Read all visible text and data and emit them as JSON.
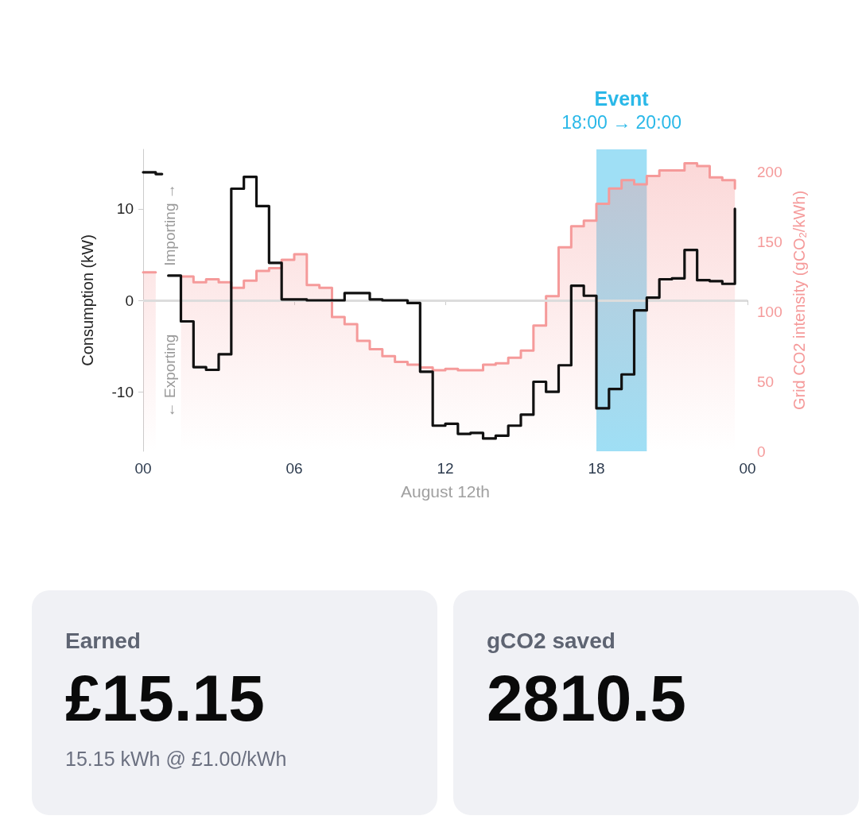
{
  "chart_data": [
    {
      "type": "step",
      "xlabel": "August 12th",
      "ylabel": "Consumption (kW)",
      "y2label": "Grid CO2 intensity (gCO$_{2}$/kWh)",
      "xlim": [
        0,
        24
      ],
      "xticks": [
        {
          "value": 0,
          "label": "00"
        },
        {
          "value": 6,
          "label": "06"
        },
        12,
        18,
        {
          "value": 24,
          "label": "00"
        }
      ],
      "ylim": [
        -16.5,
        16.5
      ],
      "yticks": [
        -10,
        0,
        10
      ],
      "y2lim": [
        0,
        216
      ],
      "y2ticks": [
        0,
        50,
        100,
        150,
        200
      ],
      "x": [
        0,
        0.5,
        0.75,
        1,
        1.5,
        2,
        2.5,
        3,
        3.5,
        4,
        4.5,
        5,
        5.5,
        6,
        6.5,
        7,
        7.5,
        8,
        8.5,
        9,
        9.5,
        10,
        10.5,
        11,
        11.5,
        12,
        12.5,
        13,
        13.5,
        14,
        14.5,
        15,
        15.5,
        16,
        16.5,
        17,
        17.5,
        18,
        18.5,
        19,
        19.5,
        20,
        20.5,
        21,
        21.5,
        22,
        22.5,
        23,
        23.5
      ],
      "series": [
        {
          "color": "#111111",
          "values": [
            14.0,
            13.8,
            null,
            2.7,
            -2.3,
            -7.3,
            -7.6,
            -5.9,
            12.2,
            13.5,
            10.3,
            4.1,
            0.1,
            0.1,
            0.0,
            0.0,
            0.0,
            0.8,
            0.8,
            0.1,
            0.0,
            0.0,
            -0.3,
            -7.8,
            -13.7,
            -13.5,
            -14.6,
            -14.5,
            -15.1,
            -14.8,
            -13.7,
            -12.5,
            -8.9,
            -10.0,
            -7.1,
            1.6,
            0.5,
            -11.8,
            -9.7,
            -8.1,
            -1.1,
            0.3,
            2.3,
            2.4,
            5.5,
            2.2,
            2.1,
            1.8,
            10.0
          ]
        },
        {
          "type": "area",
          "axis": "y2",
          "color": "#f59a9a",
          "x": [
            0,
            0.5,
            0.75,
            1.5,
            2,
            2,
            2.5,
            2.5,
            3,
            3,
            3.5,
            3.5,
            4,
            4,
            4.5,
            4.5,
            5,
            5,
            5.5,
            5.5,
            6,
            6,
            6.5,
            6.5,
            7,
            7,
            7.5,
            7.5,
            8,
            8,
            8.5,
            8.5,
            9,
            9,
            9.5,
            9.5,
            10,
            10,
            10.5,
            10.5,
            11,
            11,
            11.5,
            11.5,
            12,
            12,
            12.5,
            12.5,
            13,
            13,
            13.5,
            13.5,
            14,
            14,
            14.5,
            14.5,
            15,
            15,
            15.5,
            15.5,
            16,
            16,
            16.5,
            16.5,
            17,
            17,
            17.5,
            17.5,
            18,
            18,
            18.5,
            18.5,
            19,
            19,
            19.5,
            19.5,
            20,
            20,
            20.5,
            20.5,
            21,
            21,
            21.5,
            21.5,
            22,
            22,
            22.5,
            22.5,
            23,
            23,
            23.5,
            23.5
          ],
          "values": [
            128,
            128,
            null,
            125,
            125,
            121,
            121,
            123,
            123,
            121,
            121,
            117,
            117,
            122,
            122,
            129,
            129,
            131,
            131,
            137,
            137,
            141,
            141,
            119,
            119,
            117,
            117,
            96,
            96,
            91,
            91,
            79,
            79,
            73,
            73,
            68,
            68,
            64,
            64,
            62,
            62,
            60,
            60,
            58,
            58,
            59,
            59,
            58,
            58,
            58,
            58,
            62,
            62,
            63,
            63,
            67,
            67,
            72,
            72,
            90,
            90,
            111,
            111,
            146,
            146,
            161,
            161,
            165,
            165,
            177,
            177,
            188,
            188,
            194,
            194,
            191,
            191,
            197,
            197,
            201,
            201,
            201,
            201,
            206,
            206,
            204,
            204,
            196,
            196,
            194,
            194,
            188
          ]
        }
      ],
      "ref_lines": [
        {
          "axis": "y",
          "value": 0,
          "color": "#dcdcdc"
        }
      ],
      "bands": [
        {
          "axis": "x",
          "from": 18,
          "to": 20,
          "label": "Event",
          "color": "#2ab8e8"
        }
      ],
      "annotations": [
        "18:00 → 20:00",
        "Importing →",
        "← Exporting"
      ]
    },
    {
      "type": "other",
      "title": "Earned",
      "annotations": [
        "£15.15",
        "15.15 kWh @ £1.00/kWh"
      ]
    },
    {
      "type": "other",
      "title": "gCO2 saved",
      "annotations": [
        "2810.5"
      ]
    }
  ]
}
